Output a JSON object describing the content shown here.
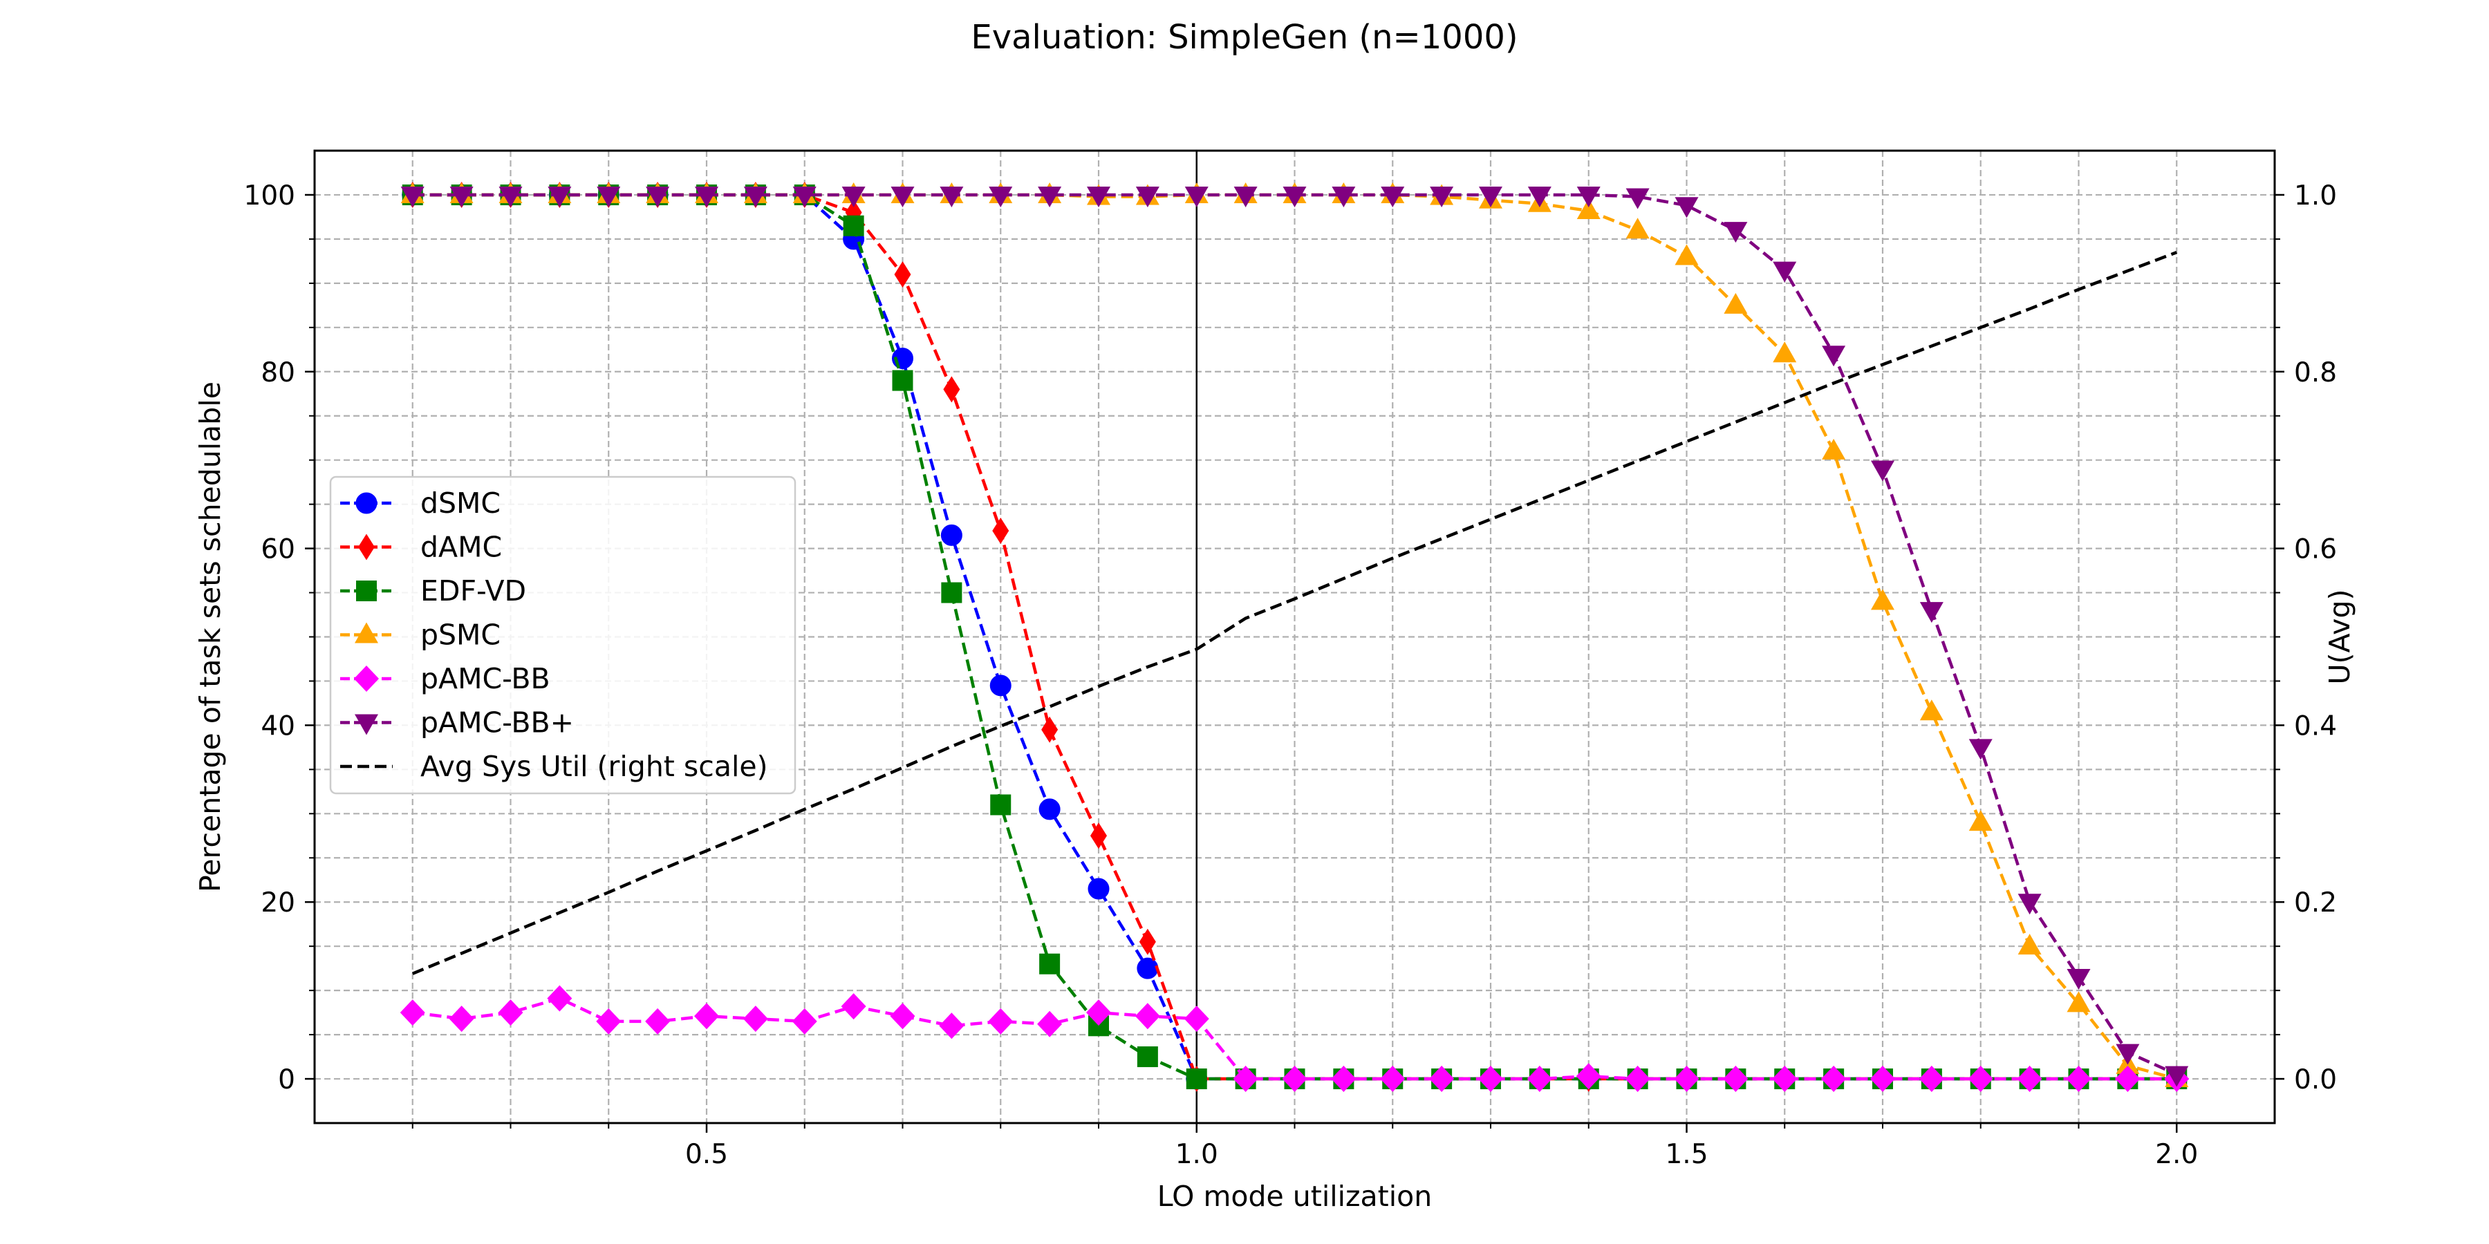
{
  "chart_data": {
    "type": "line",
    "title": "Evaluation: SimpleGen (n=1000)",
    "xlabel": "LO mode utilization",
    "ylabel": "Percentage of task sets schedulable",
    "y2label": "U(Avg)",
    "xlim": [
      0.1,
      2.1
    ],
    "ylim": [
      -5,
      105
    ],
    "y2lim": [
      -0.05,
      1.05
    ],
    "xticks": [
      0.5,
      1.0,
      1.5,
      2.0
    ],
    "xtick_labels": [
      "0.5",
      "1.0",
      "1.5",
      "2.0"
    ],
    "yticks": [
      0,
      20,
      40,
      60,
      80,
      100
    ],
    "ytick_labels": [
      "0",
      "20",
      "40",
      "60",
      "80",
      "100"
    ],
    "y2ticks": [
      0.0,
      0.2,
      0.4,
      0.6,
      0.8,
      1.0
    ],
    "y2tick_labels": [
      "0.0",
      "0.2",
      "0.4",
      "0.6",
      "0.8",
      "1.0"
    ],
    "grid": true,
    "vline_x": 1.0,
    "legend_position": "center-left",
    "x": [
      0.2,
      0.25,
      0.3,
      0.35,
      0.4,
      0.45,
      0.5,
      0.55,
      0.6,
      0.65,
      0.7,
      0.75,
      0.8,
      0.85,
      0.9,
      0.95,
      1.0,
      1.05,
      1.1,
      1.15,
      1.2,
      1.25,
      1.3,
      1.35,
      1.4,
      1.45,
      1.5,
      1.55,
      1.6,
      1.65,
      1.7,
      1.75,
      1.8,
      1.85,
      1.9,
      1.95,
      2.0
    ],
    "series": [
      {
        "name": "dSMC",
        "color": "#0000ff",
        "marker": "circle",
        "axis": "left",
        "values": [
          100,
          100,
          100,
          100,
          100,
          100,
          100,
          100,
          100,
          95,
          81.5,
          61.5,
          44.5,
          30.5,
          21.5,
          12.5,
          0,
          0,
          0,
          0,
          0,
          0,
          0,
          0,
          0,
          0,
          0,
          0,
          0,
          0,
          0,
          0,
          0,
          0,
          0,
          0,
          0
        ]
      },
      {
        "name": "dAMC",
        "color": "#ff0000",
        "marker": "diamond",
        "axis": "left",
        "values": [
          100,
          100,
          100,
          100,
          100,
          100,
          100,
          100,
          100,
          98,
          91,
          78,
          62,
          39.5,
          27.5,
          15.5,
          0,
          0,
          0,
          0,
          0,
          0,
          0,
          0,
          0,
          0,
          0,
          0,
          0,
          0,
          0,
          0,
          0,
          0,
          0,
          0,
          0
        ]
      },
      {
        "name": "EDF-VD",
        "color": "#008000",
        "marker": "square",
        "axis": "left",
        "values": [
          100,
          100,
          100,
          100,
          100,
          100,
          100,
          100,
          100,
          96.5,
          79,
          55,
          31,
          13,
          6,
          2.5,
          0,
          0,
          0,
          0,
          0,
          0,
          0,
          0,
          0,
          0,
          0,
          0,
          0,
          0,
          0,
          0,
          0,
          0,
          0,
          0,
          0
        ]
      },
      {
        "name": "pSMC",
        "color": "#ffa500",
        "marker": "triangle-up",
        "axis": "left",
        "values": [
          100,
          100,
          100,
          100,
          100,
          100,
          100,
          100,
          100,
          100,
          100,
          100,
          100,
          100,
          99.8,
          99.8,
          100,
          100,
          100,
          100,
          100,
          99.8,
          99.4,
          99,
          98.2,
          96,
          93,
          87.5,
          82,
          71,
          54,
          41.5,
          29,
          15,
          8.5,
          1.5,
          0
        ]
      },
      {
        "name": "pAMC-BB",
        "color": "#ff00ff",
        "marker": "diamond",
        "axis": "left",
        "values": [
          7.5,
          6.8,
          7.5,
          9.1,
          6.5,
          6.5,
          7.1,
          6.8,
          6.5,
          8.2,
          7.1,
          6,
          6.5,
          6.2,
          7.5,
          7.1,
          6.8,
          0,
          0,
          0,
          0,
          0,
          0,
          0,
          0.3,
          0,
          0,
          0,
          0,
          0,
          0,
          0,
          0,
          0,
          0,
          0,
          0
        ]
      },
      {
        "name": "pAMC-BB+",
        "color": "#800080",
        "marker": "triangle-down",
        "axis": "left",
        "values": [
          100,
          100,
          100,
          100,
          100,
          100,
          100,
          100,
          100,
          100,
          100,
          100,
          100,
          100,
          100,
          100,
          100,
          100,
          100,
          100,
          100,
          100,
          100,
          100,
          100,
          99.8,
          98.8,
          96,
          91.5,
          82,
          69,
          53,
          37.5,
          20,
          11.5,
          3,
          0.5
        ]
      },
      {
        "name": "Avg Sys Util (right scale)",
        "color": "#000000",
        "marker": "none",
        "axis": "right",
        "values": [
          0.119,
          0.142,
          0.165,
          0.188,
          0.211,
          0.235,
          0.258,
          0.281,
          0.305,
          0.328,
          0.352,
          0.376,
          0.399,
          0.421,
          0.444,
          0.466,
          0.486,
          0.521,
          0.543,
          0.566,
          0.589,
          0.611,
          0.633,
          0.655,
          0.677,
          0.699,
          0.721,
          0.743,
          0.765,
          0.787,
          0.808,
          0.829,
          0.85,
          0.871,
          0.893,
          0.914,
          0.935
        ]
      }
    ]
  }
}
